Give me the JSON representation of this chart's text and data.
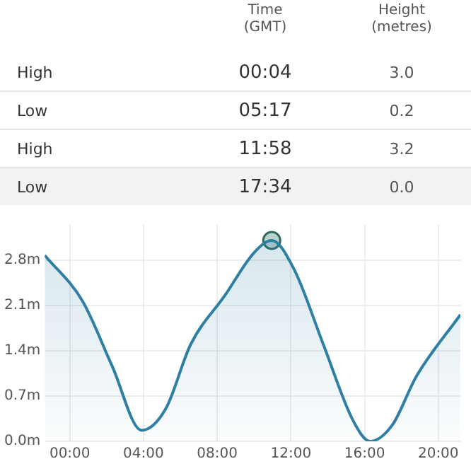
{
  "chart_data": {
    "type": "area",
    "annotations": [
      "Time\n(GMT)",
      "Height\n(metres)",
      "High",
      "00:04",
      "3.0",
      "Low",
      "05:17",
      "0.2",
      "High",
      "11:58",
      "3.2",
      "Low",
      "17:34",
      "0.0"
    ],
    "x": [
      -1.36,
      0.69,
      2.29,
      3.9,
      5.2,
      6.56,
      8.4,
      10.0,
      10.96,
      12.16,
      13.76,
      15.36,
      16.3,
      17.5,
      18.8,
      21.2
    ],
    "series": [
      {
        "color": "#2e7fa3",
        "values": [
          2.88,
          2.17,
          1.17,
          0.17,
          0.5,
          1.5,
          2.25,
          2.92,
          3.11,
          2.67,
          1.5,
          0.33,
          0.0,
          0.25,
          1.0,
          1.96
        ]
      },
      {
        "type": "scatter",
        "color": "#2e6b5e",
        "marker": "circle",
        "x": [
          10.96
        ],
        "values": [
          3.11
        ]
      }
    ],
    "xlim": [
      -1.36,
      21.2
    ],
    "xticks": [
      {
        "value": 0,
        "label": "00:00"
      },
      {
        "value": 4,
        "label": "04:00"
      },
      {
        "value": 8,
        "label": "08:00"
      },
      {
        "value": 12,
        "label": "12:00"
      },
      {
        "value": 16,
        "label": "16:00"
      },
      {
        "value": 20,
        "label": "20:00"
      }
    ],
    "ylim": [
      0,
      3.35
    ],
    "yticks": [
      {
        "value": 0,
        "label": "0.0m"
      },
      {
        "value": 0.7,
        "label": "0.7m"
      },
      {
        "value": 1.4,
        "label": "1.4m"
      },
      {
        "value": 2.1,
        "label": "2.1m"
      },
      {
        "value": 2.8,
        "label": "2.8m"
      }
    ],
    "grid": true,
    "legend": false
  }
}
